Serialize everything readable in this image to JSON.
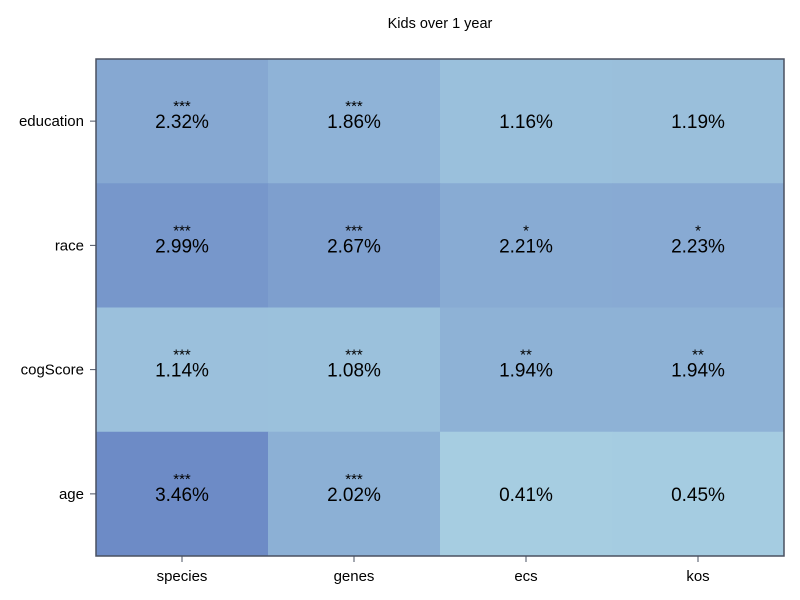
{
  "chart_data": {
    "type": "heatmap",
    "title": "Kids over 1 year",
    "x_categories": [
      "species",
      "genes",
      "ecs",
      "kos"
    ],
    "y_categories": [
      "education",
      "race",
      "cogScore",
      "age"
    ],
    "values": [
      [
        2.32,
        1.86,
        1.16,
        1.19
      ],
      [
        2.99,
        2.67,
        2.21,
        2.23
      ],
      [
        1.14,
        1.08,
        1.94,
        1.94
      ],
      [
        3.46,
        2.02,
        0.41,
        0.45
      ]
    ],
    "labels": [
      [
        "2.32%",
        "1.86%",
        "1.16%",
        "1.19%"
      ],
      [
        "2.99%",
        "2.67%",
        "2.21%",
        "2.23%"
      ],
      [
        "1.14%",
        "1.08%",
        "1.94%",
        "1.94%"
      ],
      [
        "3.46%",
        "2.02%",
        "0.41%",
        "0.45%"
      ]
    ],
    "significance": [
      [
        "***",
        "***",
        "",
        ""
      ],
      [
        "***",
        "***",
        "*",
        "*"
      ],
      [
        "***",
        "***",
        "**",
        "**"
      ],
      [
        "***",
        "***",
        "",
        ""
      ]
    ],
    "colormap": {
      "low": "#a6cde1",
      "mid": "#8eb2d6",
      "high": "#6d8bc6",
      "frame": "#4a5160"
    },
    "grid": false
  }
}
